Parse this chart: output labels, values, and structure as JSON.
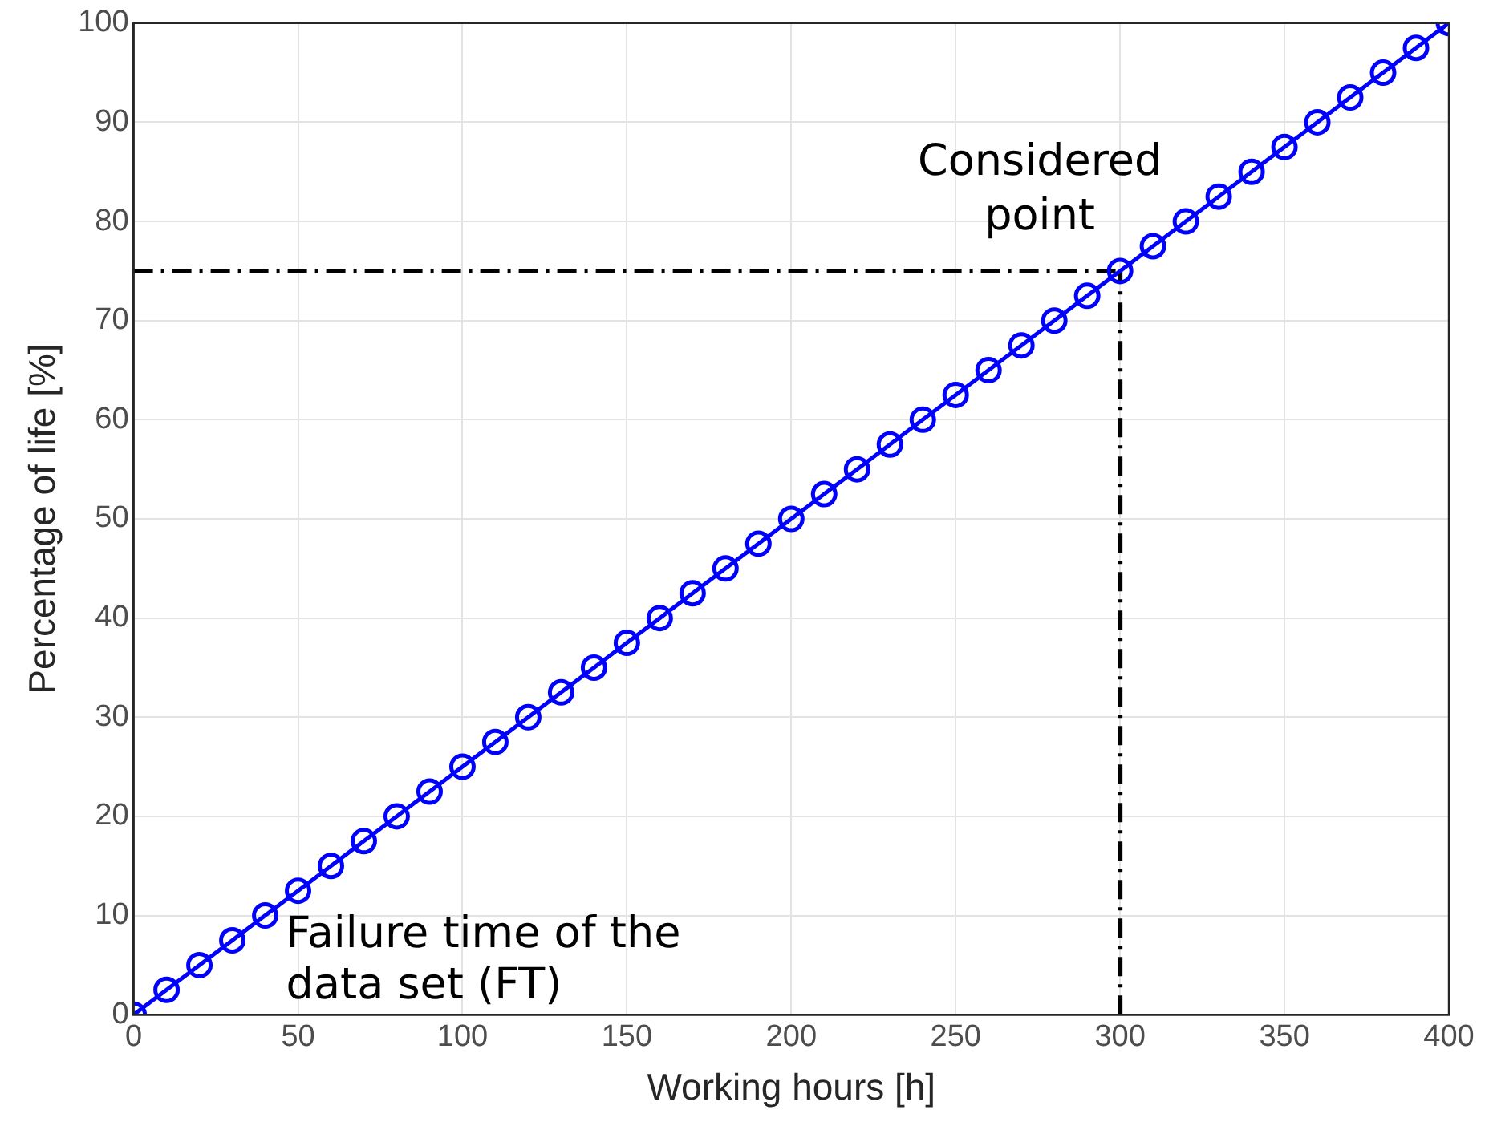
{
  "chart_data": {
    "type": "line",
    "xlabel": "Working hours [h]",
    "ylabel": "Percentage of life [%]",
    "x": [
      0,
      10,
      20,
      30,
      40,
      50,
      60,
      70,
      80,
      90,
      100,
      110,
      120,
      130,
      140,
      150,
      160,
      170,
      180,
      190,
      200,
      210,
      220,
      230,
      240,
      250,
      260,
      270,
      280,
      290,
      300,
      310,
      320,
      330,
      340,
      350,
      360,
      370,
      380,
      390,
      400
    ],
    "series": [
      {
        "color": "#0000ff",
        "values": [
          0,
          2.5,
          5,
          7.5,
          10,
          12.5,
          15,
          17.5,
          20,
          22.5,
          25,
          27.5,
          30,
          32.5,
          35,
          37.5,
          40,
          42.5,
          45,
          47.5,
          50,
          52.5,
          55,
          57.5,
          60,
          62.5,
          65,
          67.5,
          70,
          72.5,
          75,
          77.5,
          80,
          82.5,
          85,
          87.5,
          90,
          92.5,
          95,
          97.5,
          100
        ]
      }
    ],
    "xlim": [
      0,
      400
    ],
    "xticks": [
      0,
      50,
      100,
      150,
      200,
      250,
      300,
      350,
      400
    ],
    "ylim": [
      0,
      100
    ],
    "yticks": [
      0,
      10,
      20,
      30,
      40,
      50,
      60,
      70,
      80,
      90,
      100
    ],
    "grid": true,
    "marker": "circle",
    "line_style": "solid",
    "legend": false,
    "ref_lines": [
      {
        "axis": "y",
        "value": 75,
        "color": "#000000",
        "line_style": "dashdot"
      },
      {
        "axis": "x",
        "value": 300,
        "color": "#000000",
        "line_style": "dashdot"
      }
    ],
    "annotations": [
      {
        "text": "Considered point",
        "x": 300,
        "y": 75
      },
      "Failure time of the data set (FT)"
    ]
  }
}
